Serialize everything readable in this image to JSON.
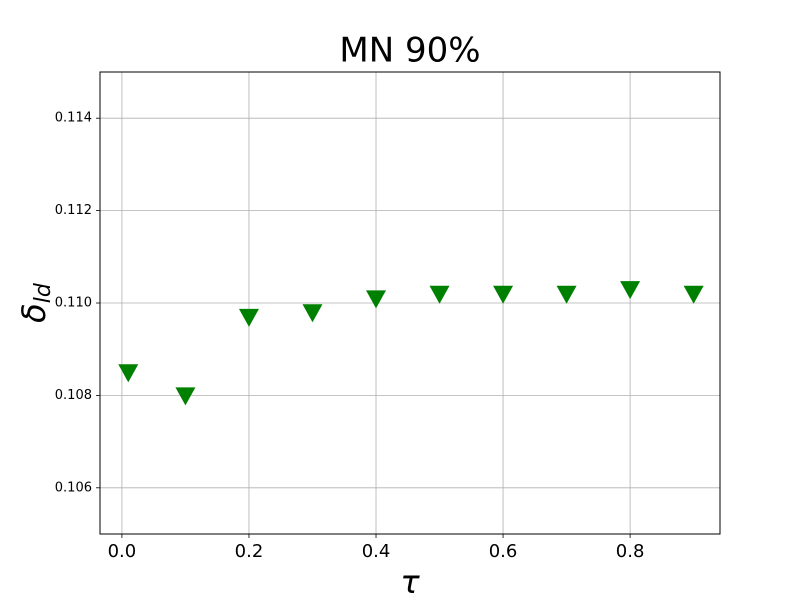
{
  "chart_data": {
    "type": "scatter",
    "title": "MN 90%",
    "x_label": "τ",
    "y_label": {
      "symbol": "δ",
      "subscript": "ld"
    },
    "x": [
      0.01,
      0.1,
      0.2,
      0.3,
      0.4,
      0.5,
      0.6,
      0.7,
      0.8,
      0.9
    ],
    "values": [
      0.1085,
      0.108,
      0.1097,
      0.1098,
      0.1101,
      0.1102,
      0.1102,
      0.1102,
      0.1103,
      0.1102
    ],
    "color": "#008000",
    "marker": "triangle-down",
    "xlim": [
      -0.0345,
      0.9415
    ],
    "ylim": [
      0.105,
      0.115
    ],
    "xticks": [
      {
        "value": 0,
        "label": "0.0"
      },
      0.2,
      0.4,
      0.6,
      0.8
    ],
    "yticks": [
      0.106,
      0.108,
      0.11,
      0.112,
      0.114
    ],
    "ytick_labels": [
      "0.106",
      "0.108",
      "0.110",
      "0.112",
      "0.114"
    ],
    "grid": true
  }
}
